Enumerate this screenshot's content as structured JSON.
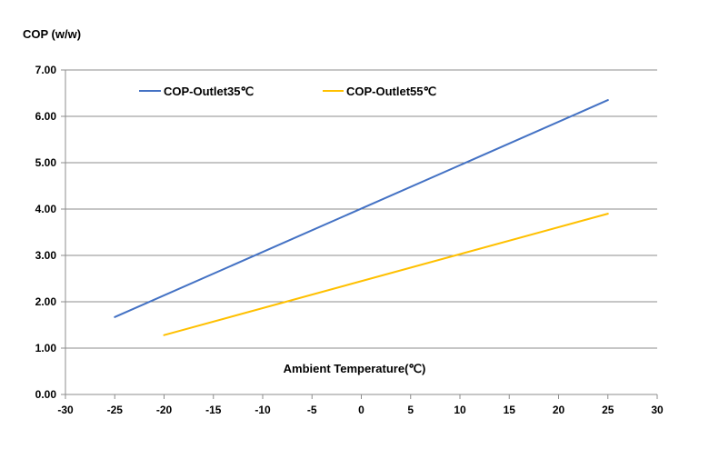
{
  "chart_data": {
    "type": "line",
    "ylabel": "COP (w/w)",
    "xlabel": "Ambient Temperature(℃)",
    "xlim": [
      -30,
      30
    ],
    "ylim": [
      0,
      7
    ],
    "x_ticks": [
      "-30",
      "-25",
      "-20",
      "-15",
      "-10",
      "-5",
      "0",
      "5",
      "10",
      "15",
      "20",
      "25",
      "30"
    ],
    "y_ticks": [
      "0.00",
      "1.00",
      "2.00",
      "3.00",
      "4.00",
      "5.00",
      "6.00",
      "7.00"
    ],
    "grid": "horizontal",
    "legend": "top",
    "series": [
      {
        "name": "COP-Outlet35℃",
        "color": "#4472C4",
        "x": [
          -25,
          25
        ],
        "y": [
          1.67,
          6.35
        ]
      },
      {
        "name": "COP-Outlet55℃",
        "color": "#FFC000",
        "x": [
          -20,
          25
        ],
        "y": [
          1.28,
          3.9
        ]
      }
    ]
  }
}
